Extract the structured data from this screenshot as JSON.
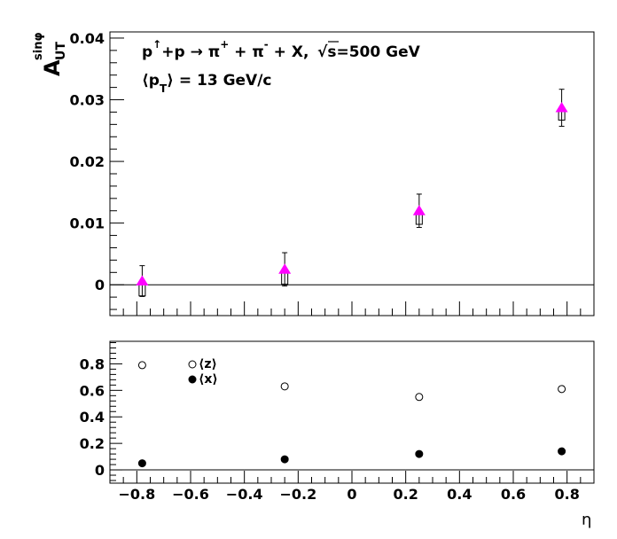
{
  "chart_data": [
    {
      "type": "scatter",
      "ylabel": "A",
      "ylabel_sub": "UT",
      "ylabel_sup": "sinφ",
      "annotation_line1": {
        "p": "p",
        "arrow_up": "↑",
        "rest": "+p → π",
        "plus_sup": "+",
        "mid": " + π",
        "minus_sup": "-",
        "tail": " + X,",
        "sqrt": "√",
        "energy": "s=500 GeV"
      },
      "annotation_line2": {
        "open": "⟨p",
        "sub": "T",
        "close": "⟩ = 13 GeV/c"
      },
      "xlim": [
        -0.9,
        0.9
      ],
      "ylim": [
        -0.005,
        0.041
      ],
      "y_ticks": [
        0,
        0.01,
        0.02,
        0.03,
        0.04
      ],
      "y_tick_labels": [
        "0",
        "0.01",
        "0.02",
        "0.03",
        "0.04"
      ],
      "grid": false,
      "series": [
        {
          "marker": "triangle",
          "color": "#ff00ff",
          "x": [
            -0.78,
            -0.25,
            0.25,
            0.78
          ],
          "y": [
            0.0006,
            0.0025,
            0.012,
            0.0287
          ],
          "y_err": [
            0.0025,
            0.0027,
            0.0027,
            0.003
          ],
          "syst_box": [
            [
              -0.0018,
              0.0005
            ],
            [
              0.0001,
              0.0022
            ],
            [
              0.0098,
              0.0118
            ],
            [
              0.0267,
              0.0285
            ]
          ]
        }
      ]
    },
    {
      "type": "scatter",
      "xlabel": "η",
      "xlim": [
        -0.9,
        0.9
      ],
      "ylim": [
        -0.1,
        0.97
      ],
      "x_ticks": [
        -0.8,
        -0.6,
        -0.4,
        -0.2,
        0,
        0.2,
        0.4,
        0.6,
        0.8
      ],
      "x_tick_labels": [
        "−0.8",
        "−0.6",
        "−0.4",
        "−0.2",
        "0",
        "0.2",
        "0.4",
        "0.6",
        "0.8"
      ],
      "y_ticks": [
        0,
        0.2,
        0.4,
        0.6,
        0.8
      ],
      "y_tick_labels": [
        "0",
        "0.2",
        "0.4",
        "0.6",
        "0.8"
      ],
      "grid": false,
      "legend_position": "top-left",
      "series": [
        {
          "name": "⟨z⟩",
          "marker": "open-circle",
          "color": "#000000",
          "x": [
            -0.78,
            -0.25,
            0.25,
            0.78
          ],
          "y": [
            0.79,
            0.63,
            0.55,
            0.61
          ]
        },
        {
          "name": "⟨x⟩",
          "marker": "filled-circle",
          "color": "#000000",
          "x": [
            -0.78,
            -0.25,
            0.25,
            0.78
          ],
          "y": [
            0.05,
            0.08,
            0.12,
            0.14
          ]
        }
      ]
    }
  ]
}
